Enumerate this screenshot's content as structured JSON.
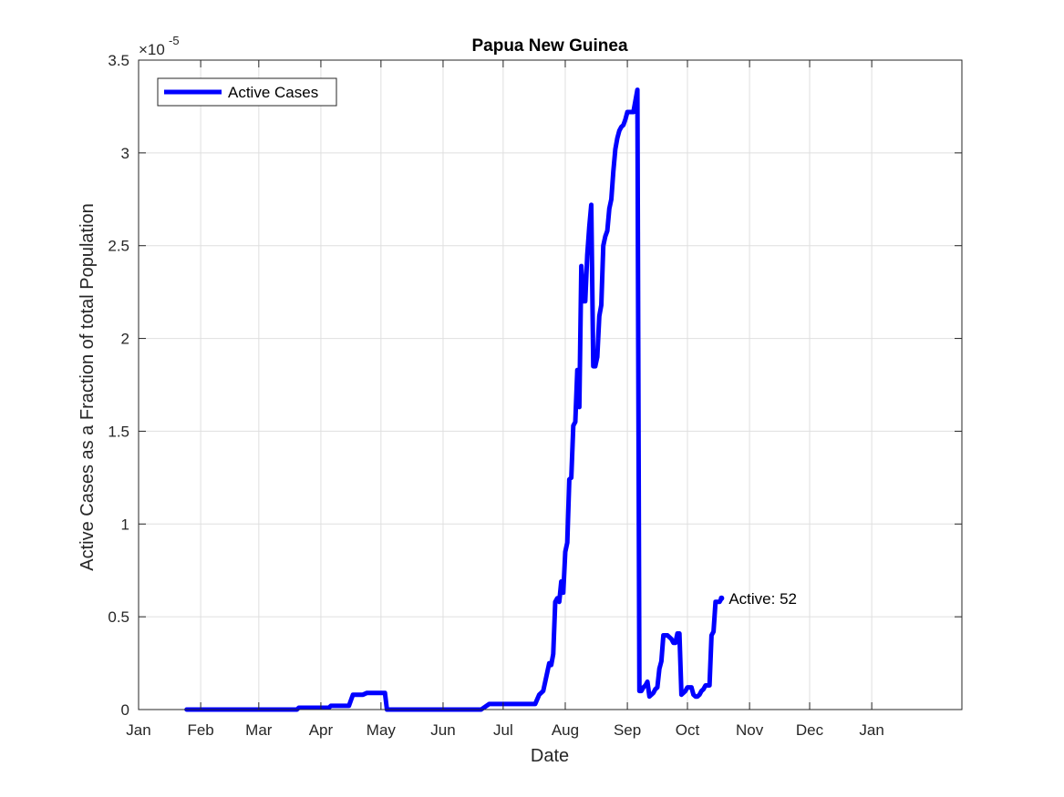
{
  "chart_data": {
    "type": "line",
    "title": "Papua New Guinea",
    "xlabel": "Date",
    "ylabel": "Active Cases as a Fraction of total Population",
    "y_exponent_label": "×10",
    "y_exponent_power": "-5",
    "y_scale": 1e-05,
    "xlim": [
      "2020-01-01",
      "2021-02-15"
    ],
    "ylim": [
      0,
      3.5
    ],
    "x_ticks": [
      {
        "date": "2020-01-01",
        "label": "Jan"
      },
      {
        "date": "2020-02-01",
        "label": "Feb"
      },
      {
        "date": "2020-03-01",
        "label": "Mar"
      },
      {
        "date": "2020-04-01",
        "label": "Apr"
      },
      {
        "date": "2020-05-01",
        "label": "May"
      },
      {
        "date": "2020-06-01",
        "label": "Jun"
      },
      {
        "date": "2020-07-01",
        "label": "Jul"
      },
      {
        "date": "2020-08-01",
        "label": "Aug"
      },
      {
        "date": "2020-09-01",
        "label": "Sep"
      },
      {
        "date": "2020-10-01",
        "label": "Oct"
      },
      {
        "date": "2020-11-01",
        "label": "Nov"
      },
      {
        "date": "2020-12-01",
        "label": "Dec"
      },
      {
        "date": "2021-01-01",
        "label": "Jan"
      }
    ],
    "y_ticks": [
      {
        "value": 0,
        "label": "0"
      },
      {
        "value": 0.5,
        "label": "0.5"
      },
      {
        "value": 1,
        "label": "1"
      },
      {
        "value": 1.5,
        "label": "1.5"
      },
      {
        "value": 2,
        "label": "2"
      },
      {
        "value": 2.5,
        "label": "2.5"
      },
      {
        "value": 3,
        "label": "3"
      },
      {
        "value": 3.5,
        "label": "3.5"
      }
    ],
    "grid": true,
    "legend": {
      "placement": "top-left",
      "entries": [
        "Active Cases"
      ]
    },
    "series": [
      {
        "name": "Active Cases",
        "color": "#0000ff",
        "points": [
          [
            "2020-01-25",
            0
          ],
          [
            "2020-03-20",
            0
          ],
          [
            "2020-03-21",
            0.01
          ],
          [
            "2020-04-05",
            0.01
          ],
          [
            "2020-04-06",
            0.02
          ],
          [
            "2020-04-15",
            0.02
          ],
          [
            "2020-04-17",
            0.08
          ],
          [
            "2020-04-22",
            0.08
          ],
          [
            "2020-04-24",
            0.09
          ],
          [
            "2020-05-03",
            0.09
          ],
          [
            "2020-05-04",
            0
          ],
          [
            "2020-06-20",
            0
          ],
          [
            "2020-06-24",
            0.03
          ],
          [
            "2020-07-17",
            0.03
          ],
          [
            "2020-07-19",
            0.08
          ],
          [
            "2020-07-21",
            0.1
          ],
          [
            "2020-07-23",
            0.2
          ],
          [
            "2020-07-24",
            0.25
          ],
          [
            "2020-07-25",
            0.24
          ],
          [
            "2020-07-26",
            0.3
          ],
          [
            "2020-07-27",
            0.58
          ],
          [
            "2020-07-28",
            0.6
          ],
          [
            "2020-07-29",
            0.58
          ],
          [
            "2020-07-30",
            0.69
          ],
          [
            "2020-07-31",
            0.63
          ],
          [
            "2020-08-01",
            0.85
          ],
          [
            "2020-08-02",
            0.9
          ],
          [
            "2020-08-03",
            1.24
          ],
          [
            "2020-08-04",
            1.25
          ],
          [
            "2020-08-05",
            1.53
          ],
          [
            "2020-08-06",
            1.55
          ],
          [
            "2020-08-07",
            1.83
          ],
          [
            "2020-08-08",
            1.63
          ],
          [
            "2020-08-09",
            2.39
          ],
          [
            "2020-08-10",
            2.2
          ],
          [
            "2020-08-11",
            2.2
          ],
          [
            "2020-08-12",
            2.45
          ],
          [
            "2020-08-13",
            2.6
          ],
          [
            "2020-08-14",
            2.72
          ],
          [
            "2020-08-15",
            1.85
          ],
          [
            "2020-08-16",
            1.85
          ],
          [
            "2020-08-17",
            1.9
          ],
          [
            "2020-08-18",
            2.12
          ],
          [
            "2020-08-19",
            2.18
          ],
          [
            "2020-08-20",
            2.5
          ],
          [
            "2020-08-21",
            2.55
          ],
          [
            "2020-08-22",
            2.58
          ],
          [
            "2020-08-23",
            2.7
          ],
          [
            "2020-08-24",
            2.75
          ],
          [
            "2020-08-25",
            2.9
          ],
          [
            "2020-08-26",
            3.02
          ],
          [
            "2020-08-27",
            3.08
          ],
          [
            "2020-08-28",
            3.12
          ],
          [
            "2020-08-29",
            3.14
          ],
          [
            "2020-08-30",
            3.15
          ],
          [
            "2020-08-31",
            3.18
          ],
          [
            "2020-09-01",
            3.22
          ],
          [
            "2020-09-03",
            3.22
          ],
          [
            "2020-09-04",
            3.22
          ],
          [
            "2020-09-05",
            3.28
          ],
          [
            "2020-09-06",
            3.34
          ],
          [
            "2020-09-07",
            0.1
          ],
          [
            "2020-09-08",
            0.1
          ],
          [
            "2020-09-09",
            0.12
          ],
          [
            "2020-09-10",
            0.13
          ],
          [
            "2020-09-11",
            0.15
          ],
          [
            "2020-09-12",
            0.07
          ],
          [
            "2020-09-13",
            0.08
          ],
          [
            "2020-09-14",
            0.09
          ],
          [
            "2020-09-15",
            0.11
          ],
          [
            "2020-09-16",
            0.12
          ],
          [
            "2020-09-17",
            0.22
          ],
          [
            "2020-09-18",
            0.26
          ],
          [
            "2020-09-19",
            0.4
          ],
          [
            "2020-09-21",
            0.4
          ],
          [
            "2020-09-23",
            0.38
          ],
          [
            "2020-09-24",
            0.36
          ],
          [
            "2020-09-25",
            0.36
          ],
          [
            "2020-09-26",
            0.41
          ],
          [
            "2020-09-27",
            0.41
          ],
          [
            "2020-09-28",
            0.08
          ],
          [
            "2020-09-29",
            0.09
          ],
          [
            "2020-09-30",
            0.1
          ],
          [
            "2020-10-01",
            0.12
          ],
          [
            "2020-10-02",
            0.12
          ],
          [
            "2020-10-03",
            0.12
          ],
          [
            "2020-10-04",
            0.08
          ],
          [
            "2020-10-05",
            0.07
          ],
          [
            "2020-10-06",
            0.07
          ],
          [
            "2020-10-07",
            0.08
          ],
          [
            "2020-10-08",
            0.1
          ],
          [
            "2020-10-09",
            0.11
          ],
          [
            "2020-10-10",
            0.13
          ],
          [
            "2020-10-11",
            0.13
          ],
          [
            "2020-10-12",
            0.13
          ],
          [
            "2020-10-13",
            0.4
          ],
          [
            "2020-10-14",
            0.42
          ],
          [
            "2020-10-15",
            0.58
          ],
          [
            "2020-10-16",
            0.58
          ],
          [
            "2020-10-17",
            0.58
          ],
          [
            "2020-10-18",
            0.6
          ]
        ]
      }
    ],
    "annotations": [
      {
        "date": "2020-10-18",
        "value": 0.6,
        "text": "Active: 52"
      }
    ]
  }
}
